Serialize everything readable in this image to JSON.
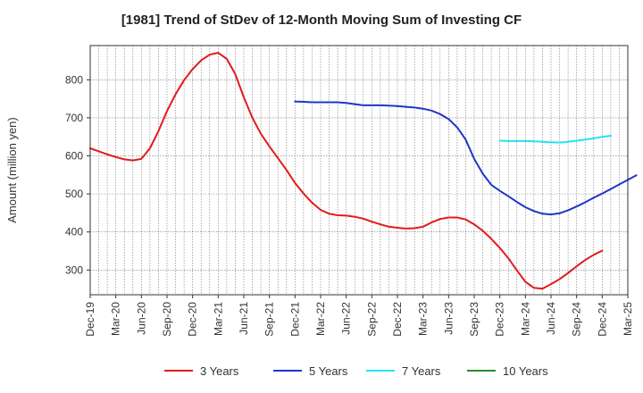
{
  "chart_data": {
    "type": "line",
    "title": "[1981]  Trend of StDev of 12-Month Moving Sum of Investing CF",
    "xlabel": "",
    "ylabel": "Amount (million yen)",
    "ylim": [
      235,
      890
    ],
    "yticks": [
      300,
      400,
      500,
      600,
      700,
      800
    ],
    "x_tick_labels": [
      "Dec-19",
      "Mar-20",
      "Jun-20",
      "Sep-20",
      "Dec-20",
      "Mar-21",
      "Jun-21",
      "Sep-21",
      "Dec-21",
      "Mar-22",
      "Jun-22",
      "Sep-22",
      "Dec-22",
      "Mar-23",
      "Jun-23",
      "Sep-23",
      "Dec-23",
      "Mar-24",
      "Jun-24",
      "Sep-24",
      "Dec-24",
      "Mar-25"
    ],
    "grid": true,
    "legend_position": "bottom",
    "series": [
      {
        "name": "3 Years",
        "color": "#e31a1c",
        "start_index": 0,
        "values": [
          620,
          612,
          604,
          597,
          591,
          588,
          592,
          620,
          665,
          718,
          762,
          799,
          828,
          851,
          866,
          871,
          855,
          815,
          754,
          700,
          658,
          625,
          594,
          563,
          529,
          501,
          477,
          458,
          448,
          444,
          443,
          440,
          435,
          427,
          420,
          414,
          411,
          409,
          410,
          414,
          425,
          434,
          438,
          438,
          433,
          420,
          403,
          382,
          358,
          331,
          299,
          269,
          253,
          251,
          263,
          276,
          292,
          310,
          326,
          340,
          351
        ]
      },
      {
        "name": "5 Years",
        "color": "#1f35c8",
        "start_index": 24,
        "values": [
          743,
          742,
          741,
          741,
          741,
          741,
          739,
          736,
          733,
          733,
          733,
          732,
          731,
          729,
          727,
          724,
          719,
          710,
          697,
          675,
          643,
          592,
          553,
          524,
          508,
          494,
          479,
          465,
          455,
          448,
          446,
          449,
          457,
          467,
          478,
          490,
          501,
          513,
          525,
          537,
          549
        ]
      },
      {
        "name": "7 Years",
        "color": "#22e5f0",
        "start_index": 48,
        "values": [
          640,
          639,
          639,
          639,
          638,
          637,
          636,
          635,
          637,
          640,
          643,
          646,
          650,
          653
        ]
      },
      {
        "name": "10 Years",
        "color": "#2e8b2e",
        "start_index": 0,
        "values": []
      }
    ]
  }
}
